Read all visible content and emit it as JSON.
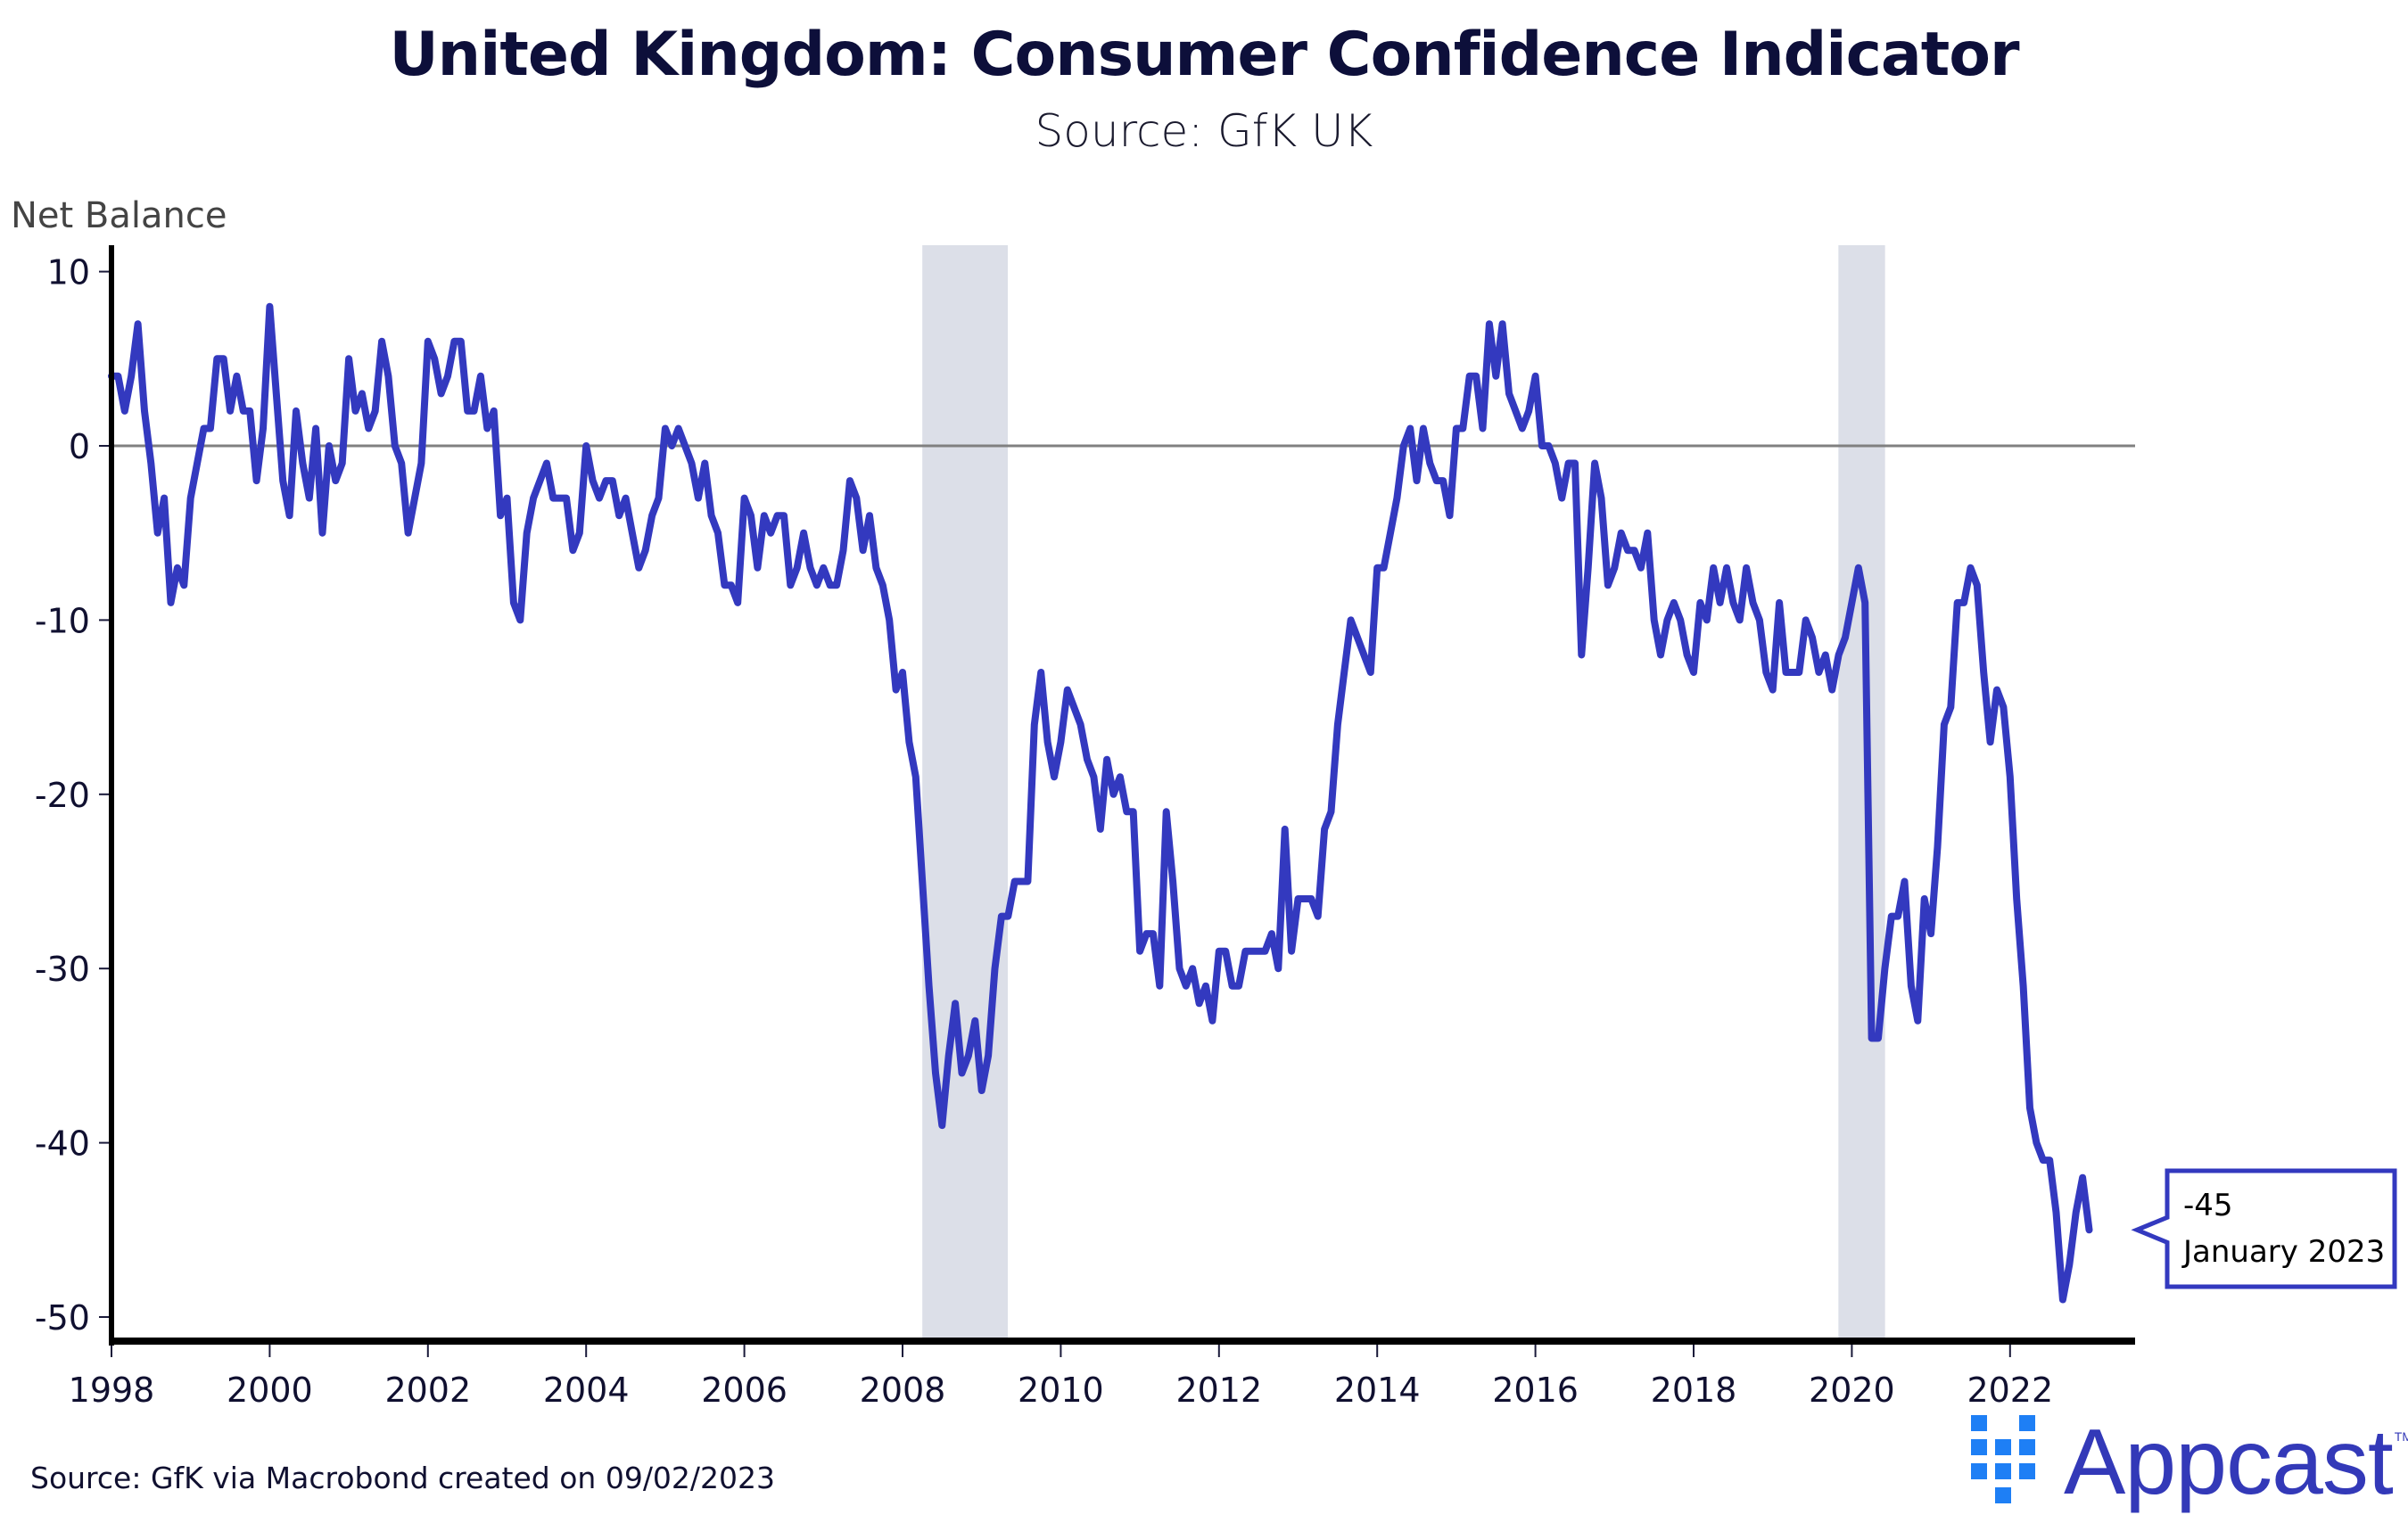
{
  "header": {
    "title": "United Kingdom: Consumer Confidence Indicator",
    "subtitle": "Source: GfK UK"
  },
  "footer": {
    "source": "Source: GfK via Macrobond created on 09/02/2023"
  },
  "logo": {
    "name": "Appcast",
    "trademark": "TM",
    "icon": "dot-grid-icon",
    "colors": {
      "wordmark": "#3339b8",
      "dots": "#1e7ff5"
    }
  },
  "colors": {
    "series": "#3339bf",
    "zero_line": "#808080",
    "recession_band": "#dcdfe8",
    "axis": "#000000",
    "text": "#101030"
  },
  "chart_data": {
    "type": "line",
    "title": "United Kingdom: Consumer Confidence Indicator",
    "subtitle": "Source: GfK UK",
    "xlabel": "",
    "ylabel": "Net Balance",
    "ylim": [
      -51.5,
      11.5
    ],
    "xlim": [
      1998.0,
      2023.6
    ],
    "yticks": [
      10,
      0,
      -10,
      -20,
      -30,
      -40,
      -50
    ],
    "ytick_labels": [
      "10",
      "0",
      "-10",
      "-20",
      "-30",
      "-40",
      "-50"
    ],
    "xticks": [
      1998,
      2000,
      2002,
      2004,
      2006,
      2008,
      2010,
      2012,
      2014,
      2016,
      2018,
      2020,
      2022
    ],
    "xtick_labels": [
      "1998",
      "2000",
      "2002",
      "2004",
      "2006",
      "2008",
      "2010",
      "2012",
      "2014",
      "2016",
      "2018",
      "2020",
      "2022"
    ],
    "grid": false,
    "reference_line": 0,
    "legend": "none",
    "recession_bands": [
      {
        "start": 2008.25,
        "end": 2009.33
      },
      {
        "start": 2019.83,
        "end": 2020.42
      }
    ],
    "series": [
      {
        "name": "GfK Consumer Confidence (Net Balance)",
        "start": "1998-01",
        "frequency": "monthly",
        "values": [
          4,
          4,
          2,
          4,
          7,
          2,
          -1,
          -5,
          -3,
          -9,
          -7,
          -8,
          -3,
          -1,
          1,
          1,
          5,
          5,
          2,
          4,
          2,
          2,
          -2,
          1,
          8,
          3,
          -2,
          -4,
          2,
          -1,
          -3,
          1,
          -5,
          0,
          -2,
          -1,
          5,
          2,
          3,
          1,
          2,
          6,
          4,
          0,
          -1,
          -5,
          -3,
          -1,
          6,
          5,
          3,
          4,
          6,
          6,
          2,
          2,
          4,
          1,
          2,
          -4,
          -3,
          -9,
          -10,
          -5,
          -3,
          -2,
          -1,
          -3,
          -3,
          -3,
          -6,
          -5,
          0,
          -2,
          -3,
          -2,
          -2,
          -4,
          -3,
          -5,
          -7,
          -6,
          -4,
          -3,
          1,
          0,
          1,
          0,
          -1,
          -3,
          -1,
          -4,
          -5,
          -8,
          -8,
          -9,
          -3,
          -4,
          -7,
          -4,
          -5,
          -4,
          -4,
          -8,
          -7,
          -5,
          -7,
          -8,
          -7,
          -8,
          -8,
          -6,
          -2,
          -3,
          -6,
          -4,
          -7,
          -8,
          -10,
          -14,
          -13,
          -17,
          -19,
          -25,
          -31,
          -36,
          -39,
          -35,
          -32,
          -36,
          -35,
          -33,
          -37,
          -35,
          -30,
          -27,
          -27,
          -25,
          -25,
          -25,
          -16,
          -13,
          -17,
          -19,
          -17,
          -14,
          -15,
          -16,
          -18,
          -19,
          -22,
          -18,
          -20,
          -19,
          -21,
          -21,
          -29,
          -28,
          -28,
          -31,
          -21,
          -25,
          -30,
          -31,
          -30,
          -32,
          -31,
          -33,
          -29,
          -29,
          -31,
          -31,
          -29,
          -29,
          -29,
          -29,
          -28,
          -30,
          -22,
          -29,
          -26,
          -26,
          -26,
          -27,
          -22,
          -21,
          -16,
          -13,
          -10,
          -11,
          -12,
          -13,
          -7,
          -7,
          -5,
          -3,
          0,
          1,
          -2,
          1,
          -1,
          -2,
          -2,
          -4,
          1,
          1,
          4,
          4,
          1,
          7,
          4,
          7,
          3,
          2,
          1,
          2,
          4,
          0,
          0,
          -1,
          -3,
          -1,
          -1,
          -12,
          -7,
          -1,
          -3,
          -8,
          -7,
          -5,
          -6,
          -6,
          -7,
          -5,
          -10,
          -12,
          -10,
          -9,
          -10,
          -12,
          -13,
          -9,
          -10,
          -7,
          -9,
          -7,
          -9,
          -10,
          -7,
          -9,
          -10,
          -13,
          -14,
          -9,
          -13,
          -13,
          -13,
          -10,
          -11,
          -13,
          -12,
          -14,
          -12,
          -11,
          -9,
          -7,
          -9,
          -34,
          -34,
          -30,
          -27,
          -27,
          -25,
          -31,
          -33,
          -26,
          -28,
          -23,
          -16,
          -15,
          -9,
          -9,
          -7,
          -8,
          -13,
          -17,
          -14,
          -15,
          -19,
          -26,
          -31,
          -38,
          -40,
          -41,
          -41,
          -44,
          -49,
          -47,
          -44,
          -42,
          -45
        ]
      }
    ],
    "annotation": {
      "value_label": "-45",
      "date_label": "January 2023",
      "value": -45,
      "x": 2023.0
    }
  }
}
